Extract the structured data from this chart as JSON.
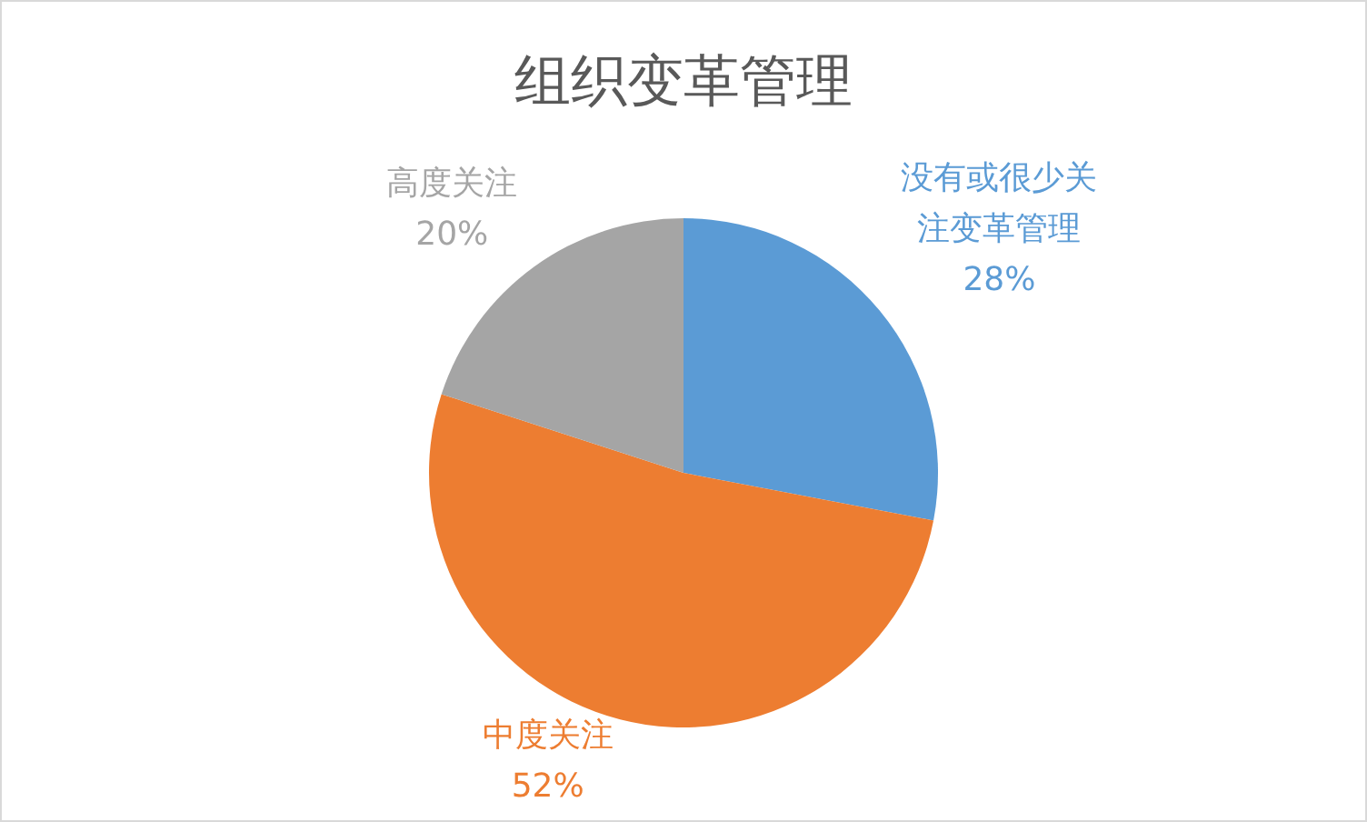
{
  "chart_data": {
    "type": "pie",
    "title": "组织变革管理",
    "categories": [
      "没有或很少关注变革管理",
      "中度关注",
      "高度关注"
    ],
    "values": [
      28,
      52,
      20
    ],
    "colors": [
      "#5b9bd5",
      "#ed7d31",
      "#a5a5a5"
    ],
    "value_labels": [
      "28%",
      "52%",
      "20%"
    ]
  }
}
